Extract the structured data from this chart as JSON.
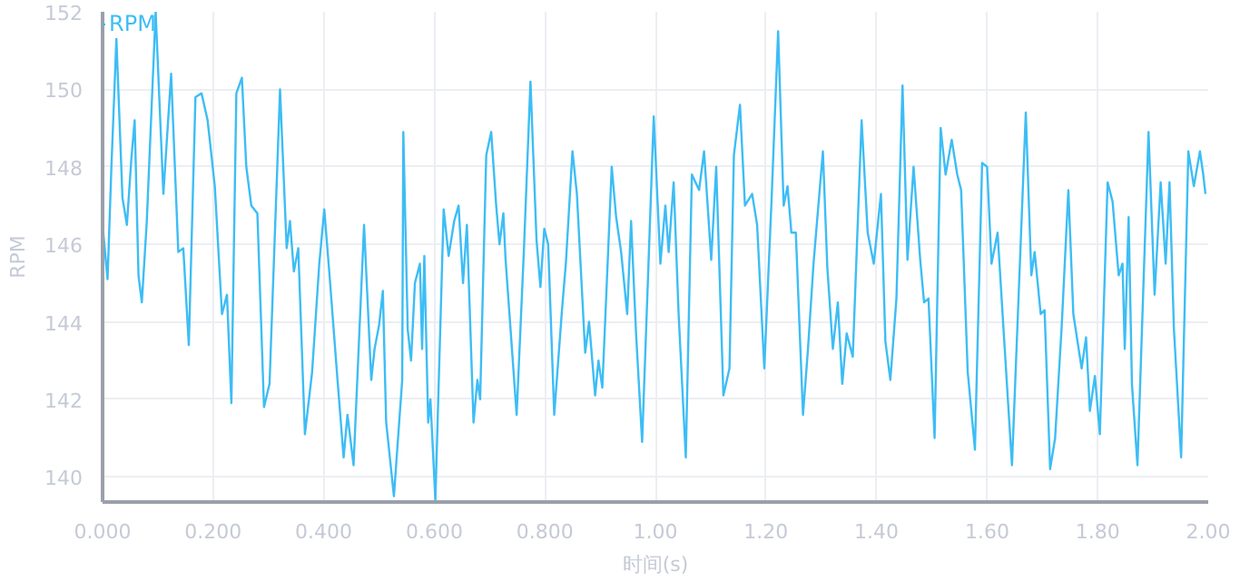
{
  "chart_data": {
    "type": "line",
    "xlabel": "时间(s)",
    "ylabel": "RPM",
    "x": [
      0,
      0.009,
      0.016,
      0.025,
      0.036,
      0.044,
      0.052,
      0.058,
      0.065,
      0.071,
      0.08,
      0.096,
      0.11,
      0.124,
      0.137,
      0.146,
      0.156,
      0.168,
      0.179,
      0.19,
      0.203,
      0.216,
      0.225,
      0.233,
      0.242,
      0.252,
      0.26,
      0.269,
      0.28,
      0.292,
      0.302,
      0.321,
      0.333,
      0.339,
      0.346,
      0.354,
      0.366,
      0.379,
      0.392,
      0.401,
      0.41,
      0.425,
      0.436,
      0.443,
      0.454,
      0.473,
      0.486,
      0.492,
      0.5,
      0.507,
      0.513,
      0.527,
      0.542,
      0.544,
      0.552,
      0.558,
      0.565,
      0.574,
      0.578,
      0.582,
      0.589,
      0.593,
      0.602,
      0.617,
      0.626,
      0.636,
      0.644,
      0.652,
      0.659,
      0.671,
      0.678,
      0.683,
      0.694,
      0.703,
      0.712,
      0.718,
      0.725,
      0.729,
      0.749,
      0.762,
      0.774,
      0.785,
      0.792,
      0.799,
      0.806,
      0.817,
      0.831,
      0.838,
      0.85,
      0.858,
      0.873,
      0.88,
      0.891,
      0.897,
      0.904,
      0.921,
      0.929,
      0.938,
      0.949,
      0.956,
      0.965,
      0.976,
      0.997,
      1.009,
      1.018,
      1.024,
      1.033,
      1.042,
      1.055,
      1.066,
      1.079,
      1.088,
      1.101,
      1.11,
      1.123,
      1.134,
      1.142,
      1.153,
      1.162,
      1.175,
      1.184,
      1.197,
      1.21,
      1.222,
      1.232,
      1.239,
      1.246,
      1.254,
      1.267,
      1.276,
      1.286,
      1.303,
      1.311,
      1.321,
      1.33,
      1.338,
      1.346,
      1.357,
      1.373,
      1.384,
      1.395,
      1.408,
      1.416,
      1.425,
      1.436,
      1.447,
      1.456,
      1.467,
      1.479,
      1.486,
      1.494,
      1.505,
      1.516,
      1.525,
      1.536,
      1.546,
      1.553,
      1.565,
      1.578,
      1.591,
      1.6,
      1.608,
      1.619,
      1.628,
      1.645,
      1.67,
      1.68,
      1.686,
      1.697,
      1.704,
      1.714,
      1.723,
      1.735,
      1.747,
      1.756,
      1.771,
      1.779,
      1.786,
      1.795,
      1.804,
      1.818,
      1.827,
      1.838,
      1.845,
      1.849,
      1.856,
      1.862,
      1.872,
      1.892,
      1.903,
      1.914,
      1.923,
      1.93,
      1.938,
      1.951,
      1.964,
      1.974,
      1.985,
      1.991,
      1.995
    ],
    "series": [
      {
        "name": "RPM",
        "color": "#3dbdf5",
        "values": [
          146.5,
          145.1,
          148.0,
          151.3,
          147.2,
          146.5,
          148.2,
          149.2,
          145.2,
          144.5,
          146.6,
          152.0,
          147.3,
          150.4,
          145.8,
          145.9,
          143.4,
          149.8,
          149.9,
          149.2,
          147.5,
          144.2,
          144.7,
          141.9,
          149.9,
          150.3,
          148.0,
          147.0,
          146.8,
          141.8,
          142.4,
          150.0,
          145.9,
          146.6,
          145.3,
          145.9,
          141.1,
          142.7,
          145.5,
          146.9,
          145.3,
          142.5,
          140.5,
          141.6,
          140.3,
          146.5,
          142.5,
          143.3,
          143.9,
          144.8,
          141.4,
          139.5,
          142.5,
          148.9,
          143.8,
          143.0,
          145.0,
          145.5,
          143.3,
          145.7,
          141.4,
          142.0,
          139.4,
          146.9,
          145.7,
          146.6,
          147.0,
          145.0,
          146.5,
          141.4,
          142.5,
          142.0,
          148.3,
          148.9,
          147.0,
          146.0,
          146.8,
          145.6,
          141.6,
          145.8,
          150.2,
          146.1,
          144.9,
          146.4,
          146.0,
          141.6,
          144.3,
          145.5,
          148.4,
          147.3,
          143.2,
          144.0,
          142.1,
          143.0,
          142.3,
          148.0,
          146.7,
          145.8,
          144.2,
          146.6,
          143.7,
          140.9,
          149.3,
          145.5,
          147.0,
          145.8,
          147.6,
          144.2,
          140.5,
          147.8,
          147.4,
          148.4,
          145.6,
          148.0,
          142.1,
          142.8,
          148.3,
          149.6,
          147.0,
          147.3,
          146.5,
          142.8,
          147.1,
          151.5,
          147.0,
          147.5,
          146.3,
          146.3,
          141.6,
          143.3,
          145.5,
          148.4,
          145.4,
          143.3,
          144.5,
          142.4,
          143.7,
          143.1,
          149.2,
          146.3,
          145.5,
          147.3,
          143.5,
          142.5,
          144.6,
          150.1,
          145.6,
          148.0,
          145.6,
          144.5,
          144.6,
          141.0,
          149.0,
          147.8,
          148.7,
          147.8,
          147.4,
          142.7,
          140.7,
          148.1,
          148.0,
          145.5,
          146.3,
          144.2,
          140.3,
          149.4,
          145.2,
          145.8,
          144.2,
          144.3,
          140.2,
          141.0,
          143.9,
          147.4,
          144.2,
          142.8,
          143.6,
          141.7,
          142.6,
          141.1,
          147.6,
          147.1,
          145.2,
          145.5,
          143.3,
          146.7,
          142.4,
          140.3,
          148.9,
          144.7,
          147.6,
          145.5,
          147.6,
          143.8,
          140.5,
          148.4,
          147.5,
          148.4,
          147.8,
          147.3
        ]
      }
    ],
    "xlim": [
      0,
      2.0
    ],
    "ylim": [
      139.35,
      152
    ],
    "xticks": [
      {
        "value": 0,
        "label": "0.000"
      },
      {
        "value": 0.2,
        "label": "0.200"
      },
      {
        "value": 0.4,
        "label": "0.400"
      },
      {
        "value": 0.6,
        "label": "0.600"
      },
      {
        "value": 0.8,
        "label": "0.800"
      },
      {
        "value": 1.0,
        "label": "1.00"
      },
      {
        "value": 1.2,
        "label": "1.20"
      },
      {
        "value": 1.4,
        "label": "1.40"
      },
      {
        "value": 1.6,
        "label": "1.60"
      },
      {
        "value": 1.8,
        "label": "1.80"
      },
      {
        "value": 2.0,
        "label": "2.00"
      }
    ],
    "yticks": [
      140,
      142,
      144,
      146,
      148,
      150,
      152
    ],
    "grid": true,
    "legend": "top left",
    "marker": "none",
    "line_style": "solid"
  }
}
